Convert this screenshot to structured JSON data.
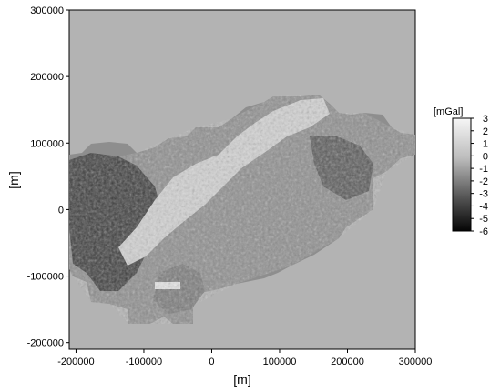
{
  "map": {
    "xlabel": "[m]",
    "ylabel": "[m]",
    "x_ticks": [
      "-200000",
      "-100000",
      "0",
      "100000",
      "200000",
      "300000"
    ],
    "y_ticks": [
      "300000",
      "200000",
      "100000",
      "0",
      "-100000",
      "-200000"
    ],
    "x_values": [
      -200000,
      -100000,
      0,
      100000,
      200000,
      300000
    ],
    "y_values": [
      300000,
      200000,
      100000,
      0,
      -100000,
      -200000
    ],
    "xlim": [
      -210000,
      300000
    ],
    "ylim": [
      -210000,
      300000
    ]
  },
  "colorbar": {
    "unit": "[mGal]",
    "labels": [
      "3",
      "2",
      "1",
      "0",
      "-1",
      "-2",
      "-3",
      "-4",
      "-5",
      "-6"
    ],
    "values": [
      3,
      2,
      1,
      0,
      -1,
      -2,
      -3,
      -4,
      -5,
      -6
    ]
  },
  "colors": {
    "background_fill": "#b3b3b3",
    "light": "#f4f4f4",
    "dark": "#111111"
  }
}
